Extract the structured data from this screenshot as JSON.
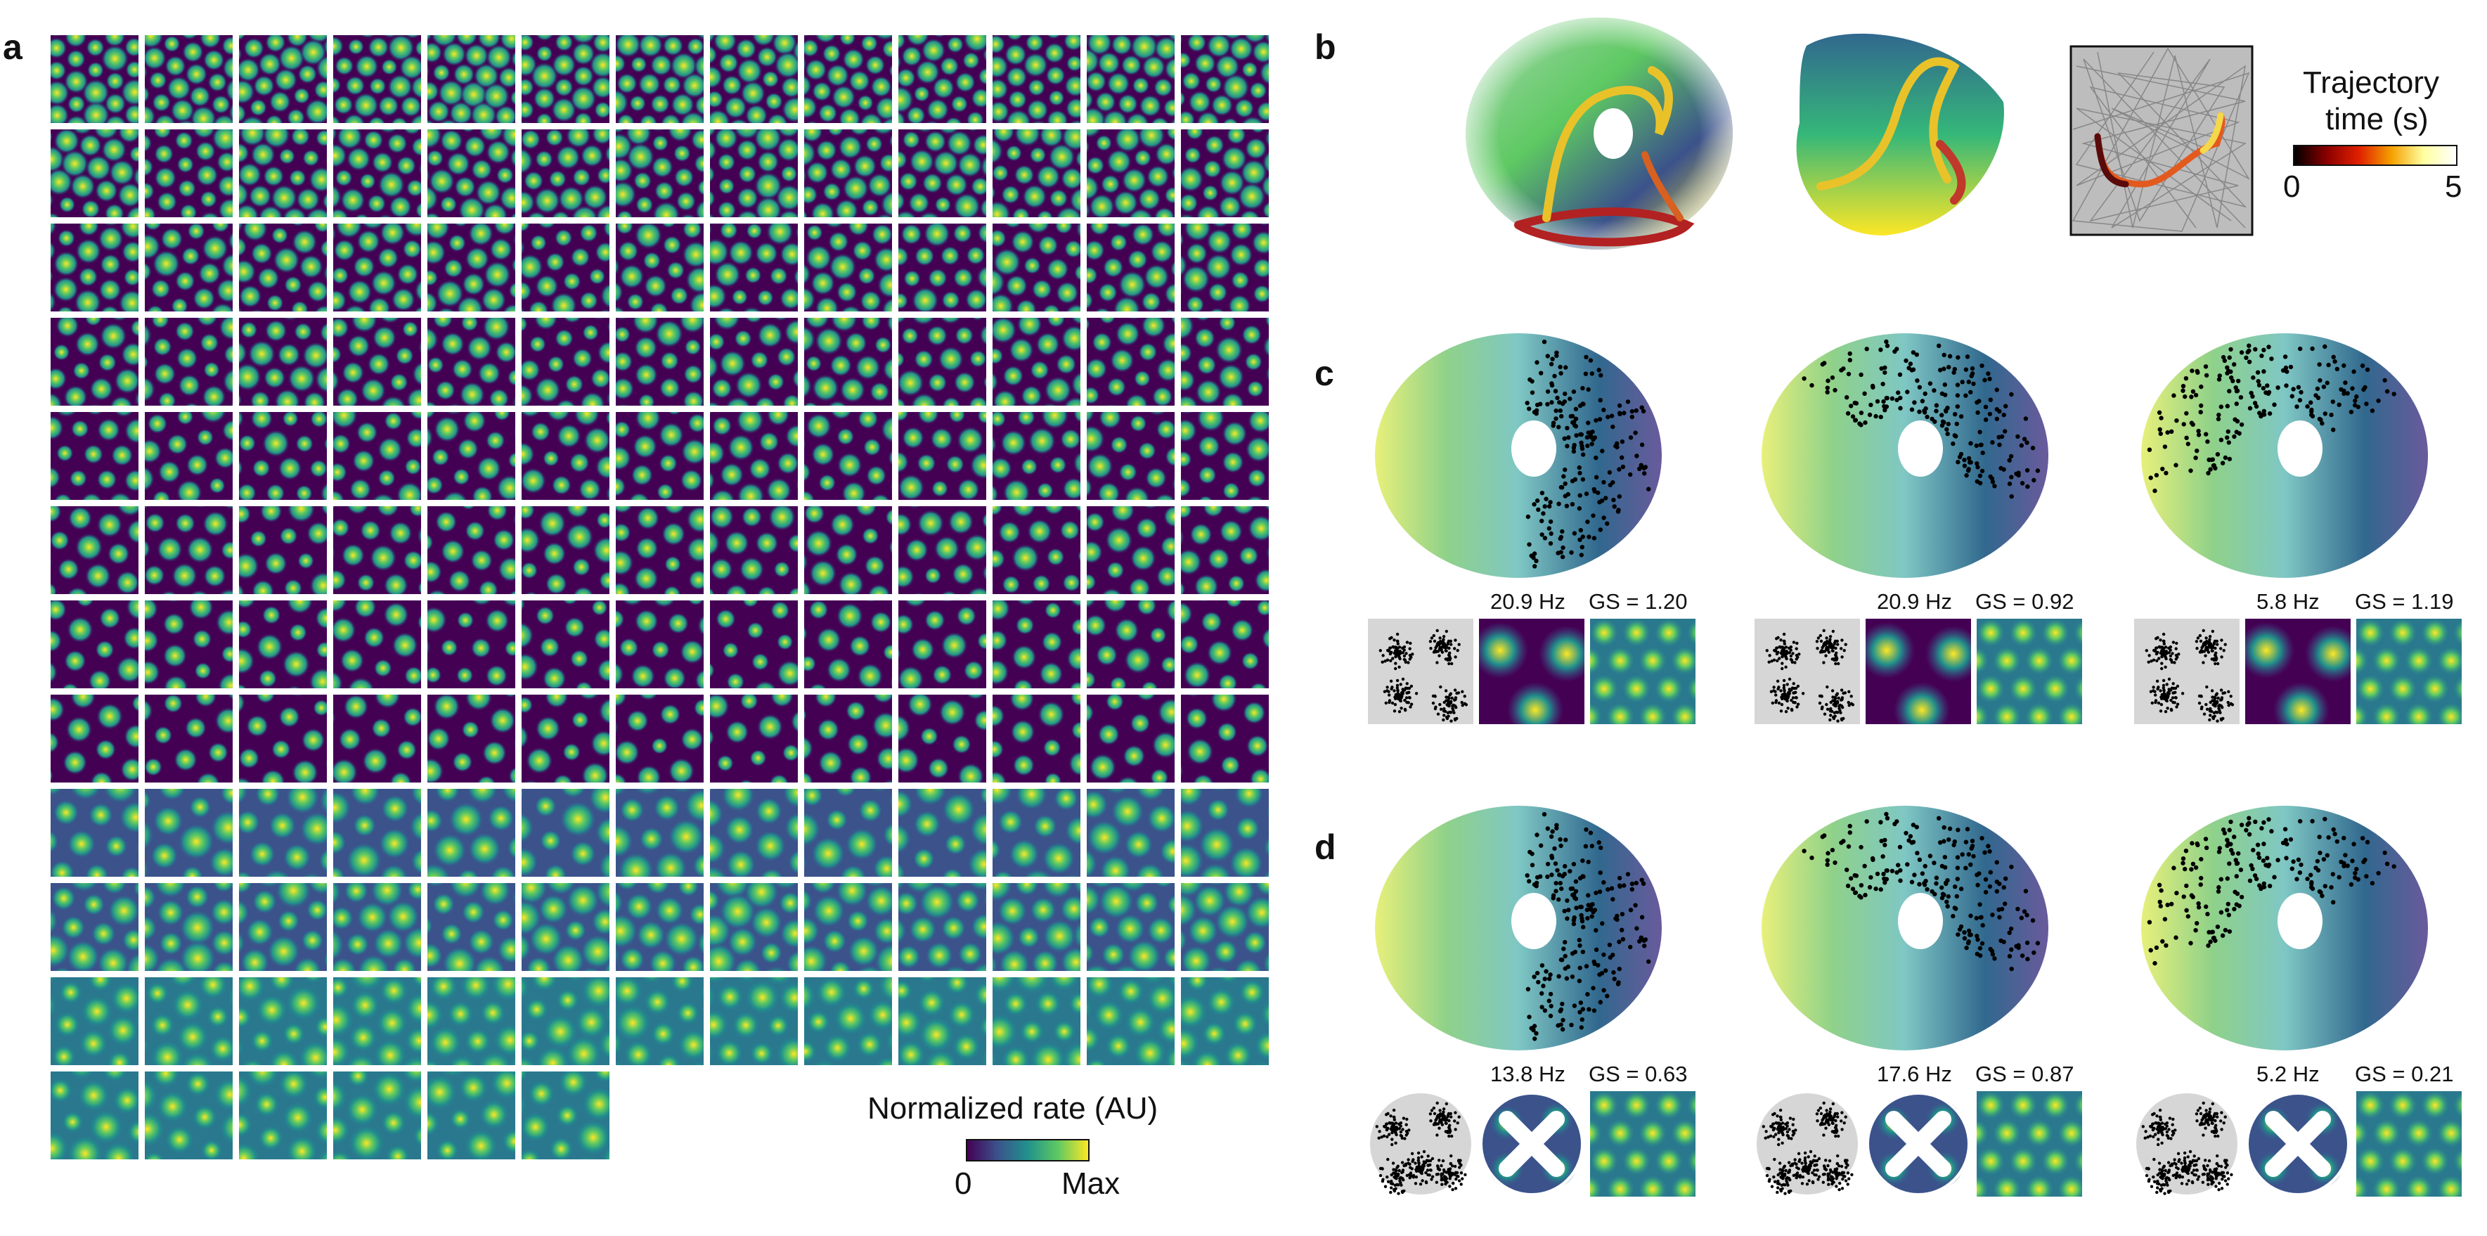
{
  "panels": {
    "a": {
      "label": "a",
      "colorbar": {
        "title": "Normalized rate (AU)",
        "min_label": "0",
        "max_label": "Max",
        "colormap": "viridis"
      },
      "grid": {
        "rows": 12,
        "cols": 13,
        "last_row_count": 6
      }
    },
    "b": {
      "label": "b",
      "colorbar": {
        "title_line1": "Trajectory",
        "title_line2": "time (s)",
        "min_label": "0",
        "max_label": "5",
        "colormap": "hot"
      }
    },
    "c": {
      "label": "c",
      "cells": [
        {
          "rate": "20.9 Hz",
          "gs": "GS = 1.20"
        },
        {
          "rate": "20.9 Hz",
          "gs": "GS = 0.92"
        },
        {
          "rate": "5.8 Hz",
          "gs": "GS = 1.19"
        }
      ]
    },
    "d": {
      "label": "d",
      "cells": [
        {
          "rate": "13.8 Hz",
          "gs": "GS = 0.63"
        },
        {
          "rate": "17.6 Hz",
          "gs": "GS = 0.87"
        },
        {
          "rate": "5.2 Hz",
          "gs": "GS = 0.21"
        }
      ]
    }
  },
  "colors": {
    "viridis_low": "#440154",
    "viridis_mid": "#21918c",
    "viridis_high": "#fde725",
    "spike": "#000000"
  }
}
